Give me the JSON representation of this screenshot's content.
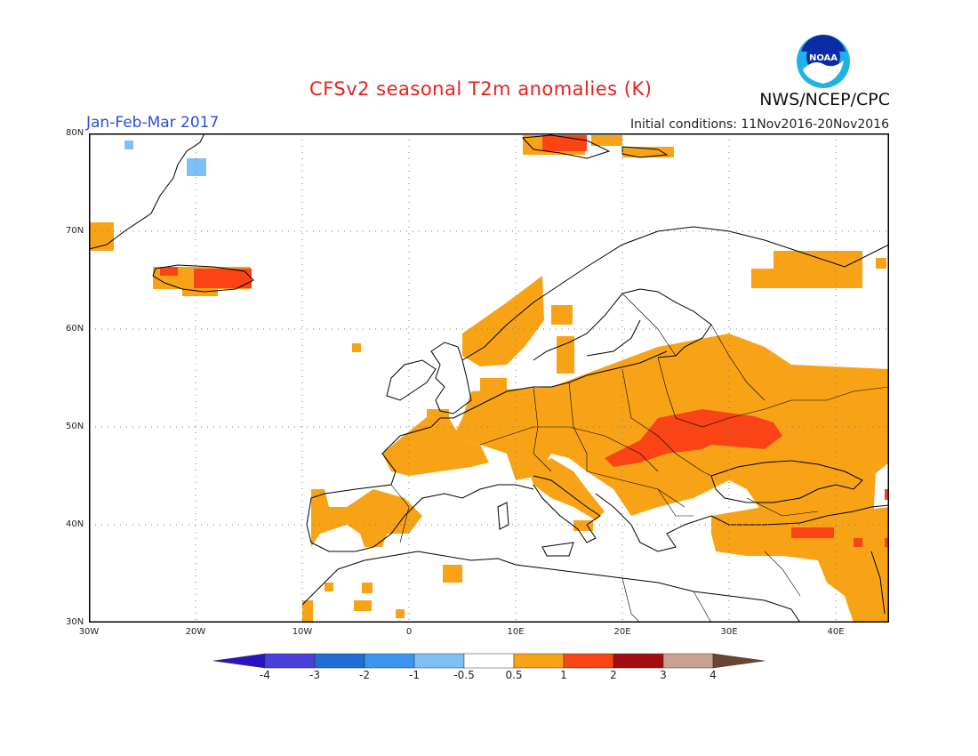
{
  "title": "CFSv2 seasonal T2m anomalies (K)",
  "season": "Jan-Feb-Mar 2017",
  "initial_conditions": "Initial conditions: 11Nov2016-20Nov2016",
  "agency": "NWS/NCEP/CPC",
  "logo_icon": "noaa-logo-icon",
  "logo_text": "NOAA",
  "map": {
    "lon_range": [
      -30,
      45
    ],
    "lat_range": [
      30,
      80
    ],
    "lat_labels": [
      "80N",
      "70N",
      "60N",
      "50N",
      "40N",
      "30N"
    ],
    "lon_labels": [
      "30W",
      "20W",
      "10W",
      "0",
      "10E",
      "20E",
      "30E",
      "40E"
    ],
    "grid": "dotted"
  },
  "colorbar": {
    "labels": [
      "-4",
      "-3",
      "-2",
      "-1",
      "-0.5",
      "0.5",
      "1",
      "2",
      "3",
      "4"
    ],
    "colors": [
      "#2a13c4",
      "#4a3fd8",
      "#1f6ed4",
      "#3a96ee",
      "#7fc0f4",
      "#ffffff",
      "#f8a316",
      "#fa4416",
      "#a30d0d",
      "#c9a290",
      "#6b4433"
    ]
  },
  "anomaly_colors": {
    "weak_warm": "#f8a316",
    "warm": "#fa4416",
    "cold": "#7fc0f4"
  }
}
